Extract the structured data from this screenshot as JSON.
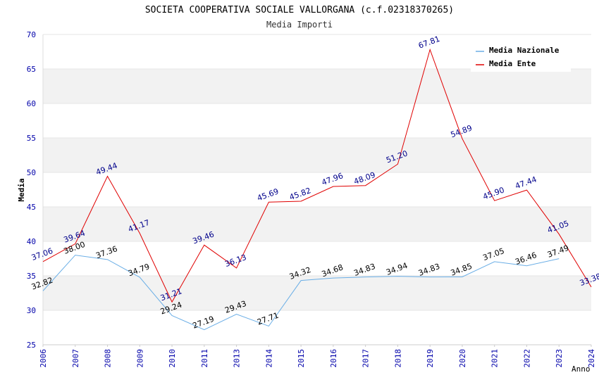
{
  "chart_data": {
    "type": "line",
    "title": "SOCIETA COOPERATIVA SOCIALE VALLORGANA (c.f.02318370265)",
    "subtitle": "Media Importi",
    "xlabel": "Anno",
    "ylabel": "Media",
    "ylim": [
      25,
      70
    ],
    "yticks": [
      "25",
      "30",
      "35",
      "40",
      "45",
      "50",
      "55",
      "60",
      "65",
      "70"
    ],
    "categories": [
      "2006",
      "2007",
      "2008",
      "2009",
      "2010",
      "2011",
      "2013",
      "2014",
      "2015",
      "2016",
      "2017",
      "2018",
      "2019",
      "2020",
      "2021",
      "2022",
      "2023",
      "2024"
    ],
    "legend_position": "top-right",
    "colors": {
      "nazionale": "#6aaee6",
      "ente": "#e00000",
      "label_nazionale": "#000000",
      "label_ente": "#00008b",
      "axis_text": "#0000aa",
      "band": "#f2f2f2",
      "grid": "#e6e6e6"
    },
    "series": [
      {
        "name": "Media Nazionale",
        "values": [
          32.82,
          38.0,
          37.36,
          34.79,
          29.24,
          27.19,
          29.43,
          27.71,
          34.32,
          34.68,
          34.83,
          34.94,
          34.83,
          34.85,
          37.05,
          36.46,
          37.49,
          null
        ],
        "labels": [
          "32.82",
          "38.00",
          "37.36",
          "34.79",
          "29.24",
          "27.19",
          "29.43",
          "27.71",
          "34.32",
          "34.68",
          "34.83",
          "34.94",
          "34.83",
          "34.85",
          "37.05",
          "36.46",
          "37.49",
          null
        ]
      },
      {
        "name": "Media Ente",
        "values": [
          37.06,
          39.64,
          49.44,
          41.17,
          31.21,
          39.46,
          36.13,
          45.69,
          45.82,
          47.96,
          48.09,
          51.2,
          67.81,
          54.89,
          45.9,
          47.44,
          41.05,
          33.38
        ],
        "labels": [
          "37.06",
          "39.64",
          "49.44",
          "41.17",
          "31.21",
          "39.46",
          "36.13",
          "45.69",
          "45.82",
          "47.96",
          "48.09",
          "51.20",
          "67.81",
          "54.89",
          "45.90",
          "47.44",
          "41.05",
          "33.38"
        ]
      }
    ]
  }
}
